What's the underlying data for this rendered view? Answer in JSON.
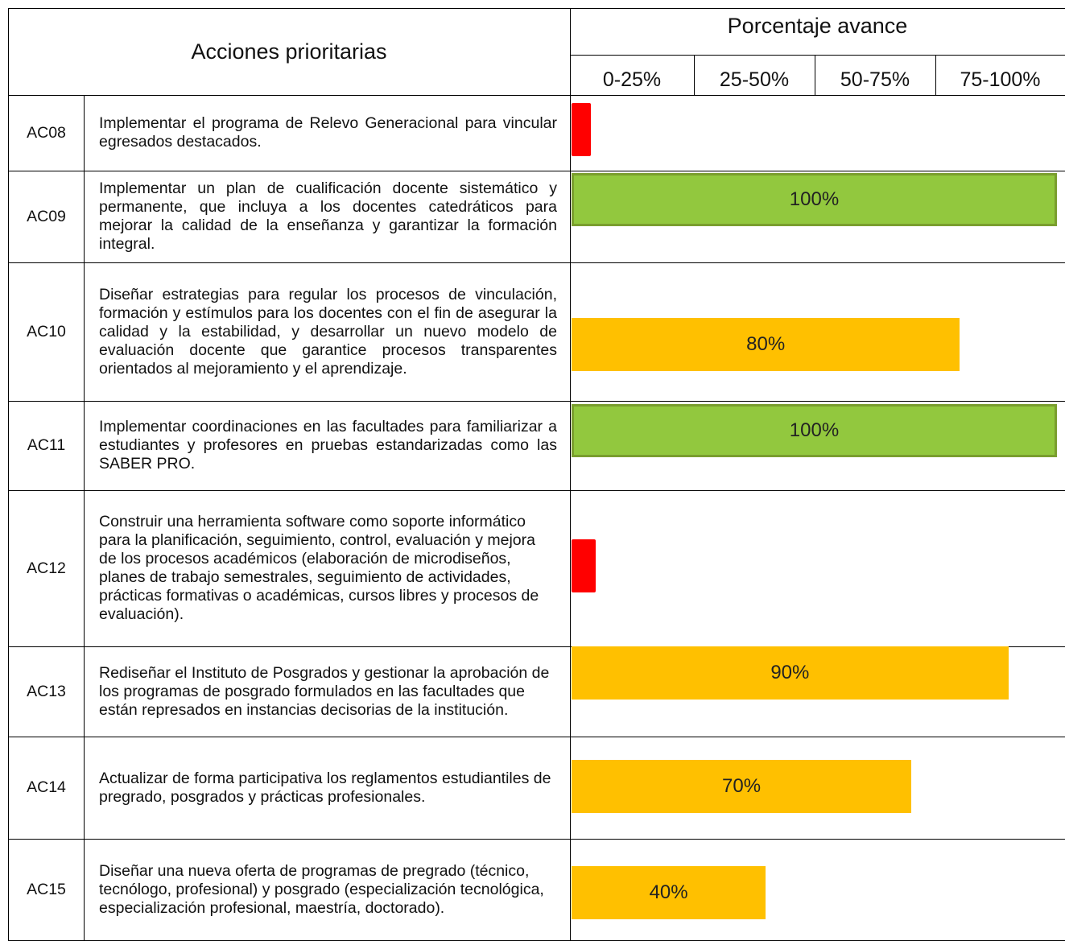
{
  "header": {
    "title": "Acciones prioritarias",
    "progress_title": "Porcentaje avance",
    "ranges": [
      "0-25%",
      "25-50%",
      "50-75%",
      "75-100%"
    ]
  },
  "rows": [
    {
      "code": "AC08",
      "text": "Implementar el programa de Relevo Generacional para vincular egresados destacados.",
      "value": 4,
      "color": "#ff0000"
    },
    {
      "code": "AC09",
      "text": "Implementar un plan de cualificación docente sistemático y permanente, que incluya a los docentes catedráticos para mejorar la calidad de la enseñanza y garantizar la formación integral.",
      "value": 100,
      "label": "100%",
      "color": "#92c83e"
    },
    {
      "code": "AC10",
      "text": "Diseñar estrategias para regular los procesos de vinculación, formación y estímulos para los docentes con el fin de asegurar la calidad y la estabilidad, y desarrollar un nuevo modelo de evaluación docente que garantice procesos transparentes orientados al mejoramiento y el aprendizaje.",
      "value": 80,
      "label": "80%",
      "color": "#ffc000"
    },
    {
      "code": "AC11",
      "text": "Implementar coordinaciones en las facultades para familiarizar a estudiantes y profesores en pruebas estandarizadas como las SABER PRO.",
      "value": 100,
      "label": "100%",
      "color": "#92c83e"
    },
    {
      "code": "AC12",
      "text": "Construir una herramienta software como soporte informático para la planificación, seguimiento, control, evaluación y mejora de los procesos académicos (elaboración de microdiseños, planes de trabajo semestrales, seguimiento de actividades, prácticas formativas o académicas, cursos libres y procesos de evaluación).",
      "value": 5,
      "color": "#ff0000"
    },
    {
      "code": "AC13",
      "text": "Rediseñar el Instituto de Posgrados y gestionar la aprobación de los programas de posgrado formulados en las facultades que están represados en instancias decisorias de la institución.",
      "value": 90,
      "label": "90%",
      "color": "#ffc000"
    },
    {
      "code": "AC14",
      "text": "Actualizar de forma participativa los reglamentos estudiantiles de pregrado, posgrados y prácticas profesionales.",
      "value": 70,
      "label": "70%",
      "color": "#ffc000"
    },
    {
      "code": "AC15",
      "text": "Diseñar una nueva oferta de programas de pregrado (técnico, tecnólogo, profesional) y posgrado (especialización tecnológica, especialización profesional, maestría, doctorado).",
      "value": 40,
      "label": "40%",
      "color": "#ffc000"
    }
  ]
}
